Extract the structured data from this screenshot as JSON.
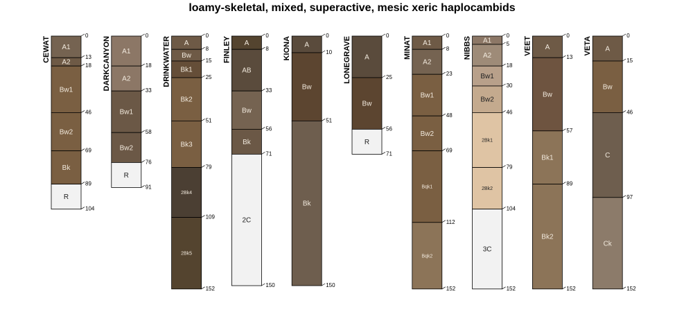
{
  "chart_data": {
    "type": "soil-profile",
    "title": "loamy-skeletal, mixed, superactive, mesic xeric haplocambids",
    "depth_units": "cm",
    "profiles": [
      {
        "name": "CEWAT",
        "horizons": [
          {
            "label": "A1",
            "top": 0,
            "bottom": 13,
            "color": "#756351"
          },
          {
            "label": "A2",
            "top": 13,
            "bottom": 18,
            "color": "#6e5a46"
          },
          {
            "label": "Bw1",
            "top": 18,
            "bottom": 46,
            "color": "#7a5f42"
          },
          {
            "label": "Bw2",
            "top": 46,
            "bottom": 69,
            "color": "#7a5f42"
          },
          {
            "label": "Bk",
            "top": 69,
            "bottom": 89,
            "color": "#7a5f42"
          },
          {
            "label": "R",
            "top": 89,
            "bottom": 104,
            "color": "#f2f2f2"
          }
        ]
      },
      {
        "name": "DARKCANYON",
        "horizons": [
          {
            "label": "A1",
            "top": 0,
            "bottom": 18,
            "color": "#8c7766"
          },
          {
            "label": "A2",
            "top": 18,
            "bottom": 33,
            "color": "#8c7766"
          },
          {
            "label": "Bw1",
            "top": 33,
            "bottom": 58,
            "color": "#6b5846"
          },
          {
            "label": "Bw2",
            "top": 58,
            "bottom": 76,
            "color": "#6b5846"
          },
          {
            "label": "R",
            "top": 76,
            "bottom": 91,
            "color": "#f2f2f2"
          }
        ]
      },
      {
        "name": "DRINKWATER",
        "horizons": [
          {
            "label": "A",
            "top": 0,
            "bottom": 8,
            "color": "#6e5a46"
          },
          {
            "label": "Bw",
            "top": 8,
            "bottom": 15,
            "color": "#6e5a46"
          },
          {
            "label": "Bk1",
            "top": 15,
            "bottom": 25,
            "color": "#654e38"
          },
          {
            "label": "Bk2",
            "top": 25,
            "bottom": 51,
            "color": "#7a5f42"
          },
          {
            "label": "Bk3",
            "top": 51,
            "bottom": 79,
            "color": "#7a5f42"
          },
          {
            "label": "2Bk4",
            "top": 79,
            "bottom": 109,
            "color": "#4b3f33"
          },
          {
            "label": "2Bk5",
            "top": 109,
            "bottom": 152,
            "color": "#54442f"
          }
        ]
      },
      {
        "name": "FINLEY",
        "horizons": [
          {
            "label": "A",
            "top": 0,
            "bottom": 8,
            "color": "#54442f"
          },
          {
            "label": "AB",
            "top": 8,
            "bottom": 33,
            "color": "#5a4b3c"
          },
          {
            "label": "Bw",
            "top": 33,
            "bottom": 56,
            "color": "#756351"
          },
          {
            "label": "Bk",
            "top": 56,
            "bottom": 71,
            "color": "#6b5846"
          },
          {
            "label": "2C",
            "top": 71,
            "bottom": 150,
            "color": "#f2f2f2"
          }
        ]
      },
      {
        "name": "KIONA",
        "horizons": [
          {
            "label": "A",
            "top": 0,
            "bottom": 10,
            "color": "#5a4b3c"
          },
          {
            "label": "Bw",
            "top": 10,
            "bottom": 51,
            "color": "#5c4530"
          },
          {
            "label": "Bk",
            "top": 51,
            "bottom": 150,
            "color": "#6e5e4e"
          }
        ]
      },
      {
        "name": "LONEGRAVE",
        "horizons": [
          {
            "label": "A",
            "top": 0,
            "bottom": 25,
            "color": "#5a4b3c"
          },
          {
            "label": "Bw",
            "top": 25,
            "bottom": 56,
            "color": "#5c4530"
          },
          {
            "label": "R",
            "top": 56,
            "bottom": 71,
            "color": "#f2f2f2"
          }
        ]
      },
      {
        "name": "MINAT",
        "horizons": [
          {
            "label": "A1",
            "top": 0,
            "bottom": 8,
            "color": "#6e5a46"
          },
          {
            "label": "A2",
            "top": 8,
            "bottom": 23,
            "color": "#756351"
          },
          {
            "label": "Bw1",
            "top": 23,
            "bottom": 48,
            "color": "#7a5f42"
          },
          {
            "label": "Bw2",
            "top": 48,
            "bottom": 69,
            "color": "#7a5f42"
          },
          {
            "label": "Bqk1",
            "top": 69,
            "bottom": 112,
            "color": "#7a5f42"
          },
          {
            "label": "Bqk2",
            "top": 112,
            "bottom": 152,
            "color": "#8c7458"
          }
        ]
      },
      {
        "name": "NIBBS",
        "horizons": [
          {
            "label": "A1",
            "top": 0,
            "bottom": 5,
            "color": "#8c7766"
          },
          {
            "label": "A2",
            "top": 5,
            "bottom": 18,
            "color": "#9e8b78"
          },
          {
            "label": "Bw1",
            "top": 18,
            "bottom": 30,
            "color": "#b8a08a"
          },
          {
            "label": "Bw2",
            "top": 30,
            "bottom": 46,
            "color": "#c4aa8e"
          },
          {
            "label": "2Bk1",
            "top": 46,
            "bottom": 79,
            "color": "#dfc4a4"
          },
          {
            "label": "2Bk2",
            "top": 79,
            "bottom": 104,
            "color": "#dfc4a4"
          },
          {
            "label": "3C",
            "top": 104,
            "bottom": 152,
            "color": "#f2f2f2"
          }
        ]
      },
      {
        "name": "VEET",
        "horizons": [
          {
            "label": "A",
            "top": 0,
            "bottom": 13,
            "color": "#6e5a46"
          },
          {
            "label": "Bw",
            "top": 13,
            "bottom": 57,
            "color": "#6e5440"
          },
          {
            "label": "Bk1",
            "top": 57,
            "bottom": 89,
            "color": "#8c7458"
          },
          {
            "label": "Bk2",
            "top": 89,
            "bottom": 152,
            "color": "#8c7458"
          }
        ]
      },
      {
        "name": "VETA",
        "horizons": [
          {
            "label": "A",
            "top": 0,
            "bottom": 15,
            "color": "#6e5a46"
          },
          {
            "label": "Bw",
            "top": 15,
            "bottom": 46,
            "color": "#7a5f42"
          },
          {
            "label": "C",
            "top": 46,
            "bottom": 97,
            "color": "#6e5e4e"
          },
          {
            "label": "Ck",
            "top": 97,
            "bottom": 152,
            "color": "#8c7b6a"
          }
        ]
      }
    ]
  }
}
